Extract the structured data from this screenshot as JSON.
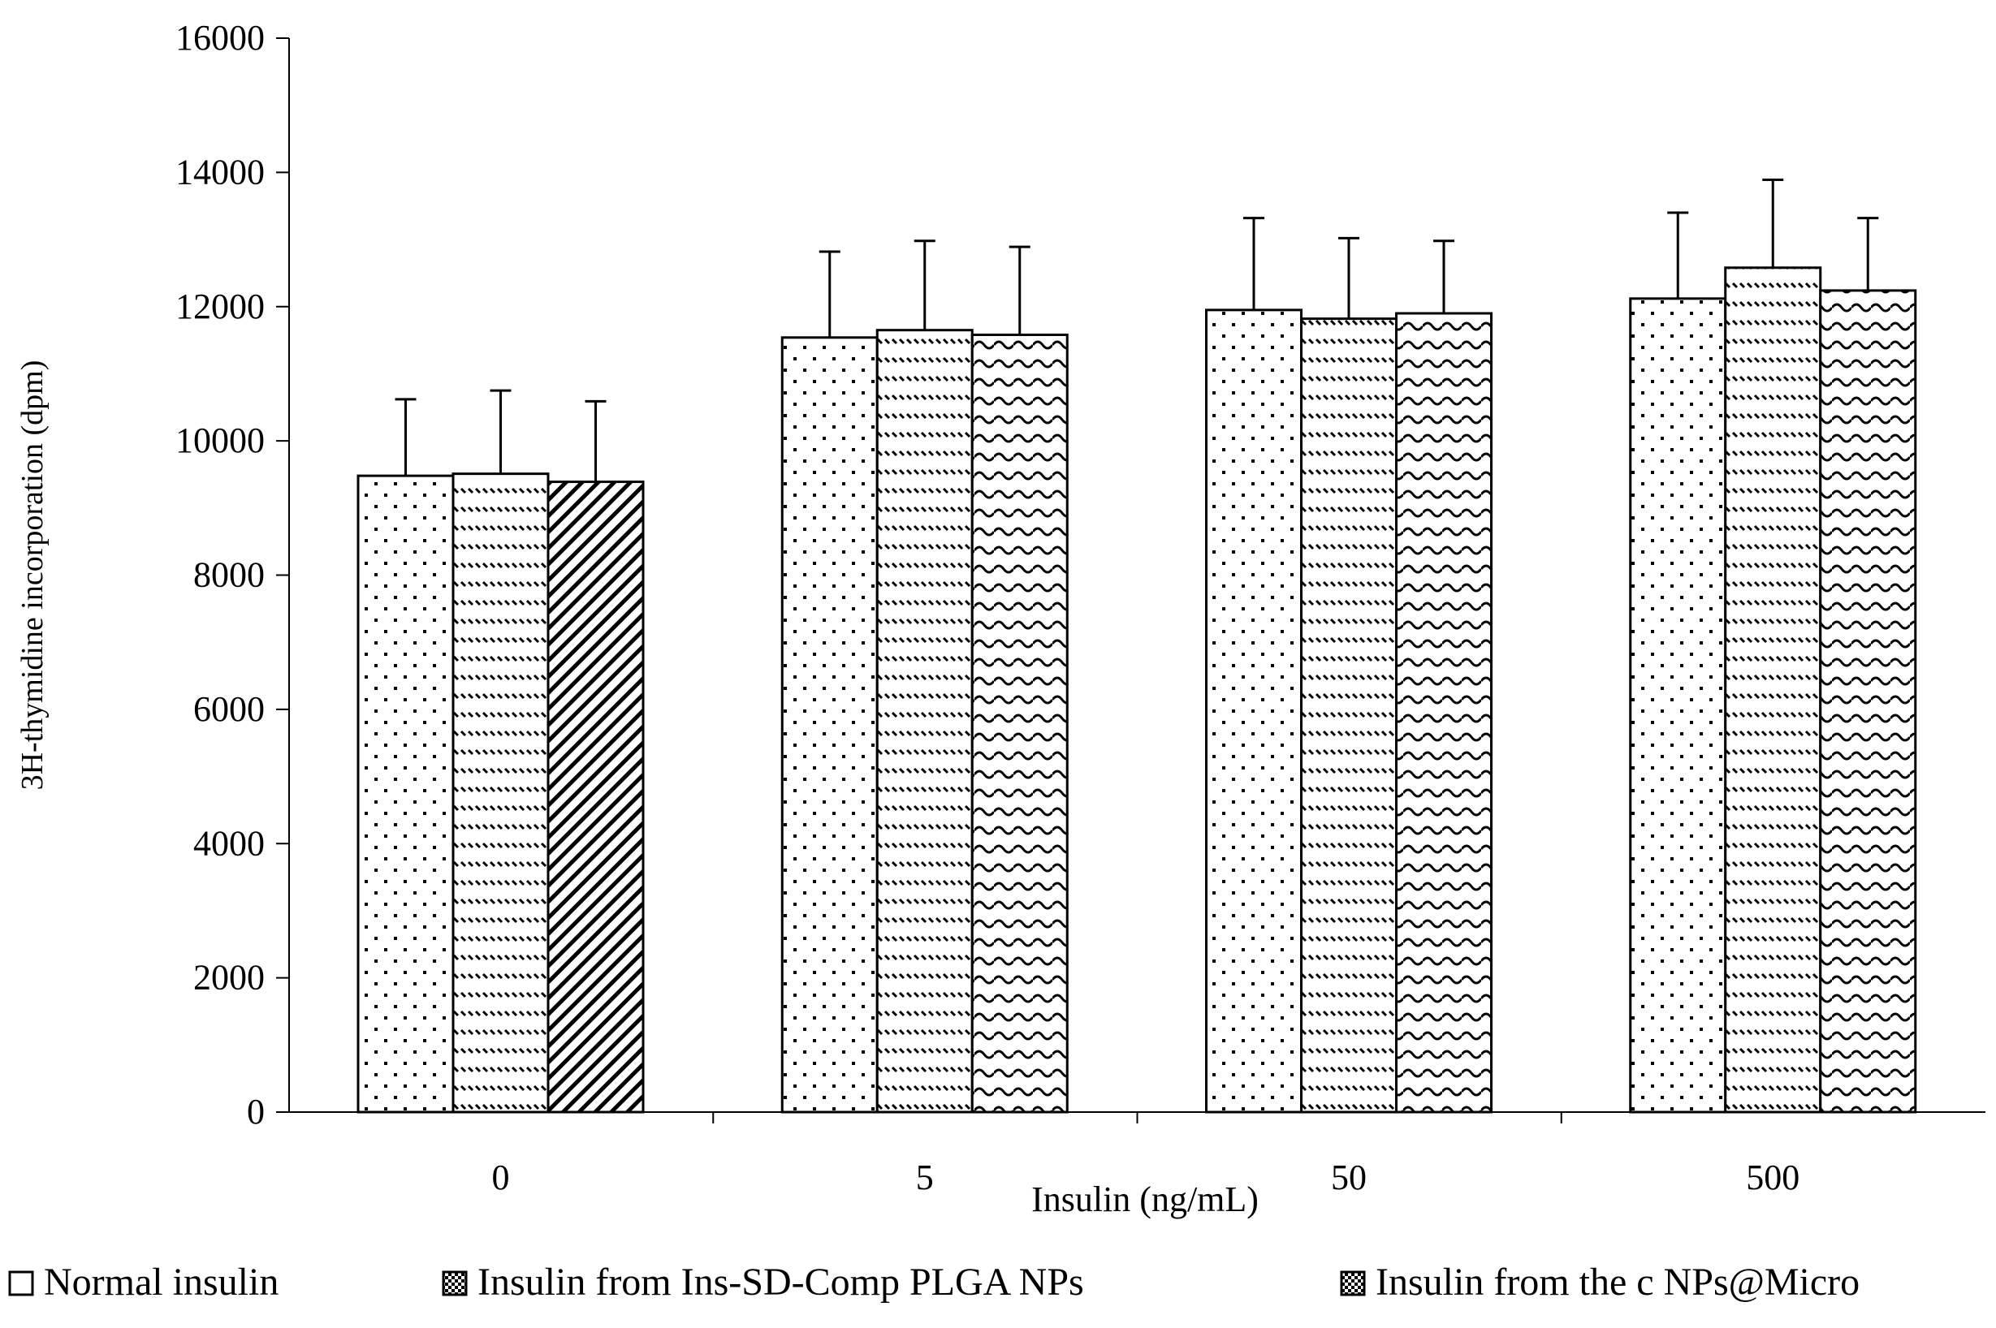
{
  "chart_data": {
    "type": "bar",
    "categories": [
      "0",
      "5",
      "50",
      "500"
    ],
    "series": [
      {
        "name": "Normal insulin",
        "pattern": "dots",
        "values": [
          9480,
          11540,
          11950,
          12120
        ],
        "errors": [
          1140,
          1280,
          1370,
          1280
        ]
      },
      {
        "name": "Insulin from Ins-SD-Comp PLGA NPs",
        "pattern": "dashes",
        "values": [
          9510,
          11650,
          11820,
          12580
        ],
        "errors": [
          1240,
          1330,
          1200,
          1310
        ]
      },
      {
        "name": "Insulin from the c NPs@Micro",
        "pattern_per_category": [
          "diagonal",
          "wave",
          "wave",
          "wave"
        ],
        "values": [
          9390,
          11580,
          11900,
          12240
        ],
        "errors": [
          1200,
          1310,
          1080,
          1080
        ]
      }
    ],
    "xlabel": "Insulin (ng/mL)",
    "ylabel": "3H-thymidine incorporation (dpm)",
    "ylim": [
      0,
      16000
    ],
    "yticks": [
      0,
      2000,
      4000,
      6000,
      8000,
      10000,
      12000,
      14000,
      16000
    ],
    "grid": false,
    "legend_position": "bottom",
    "colors": {
      "bar_fill": "#ffffff",
      "stroke": "#000000"
    }
  }
}
